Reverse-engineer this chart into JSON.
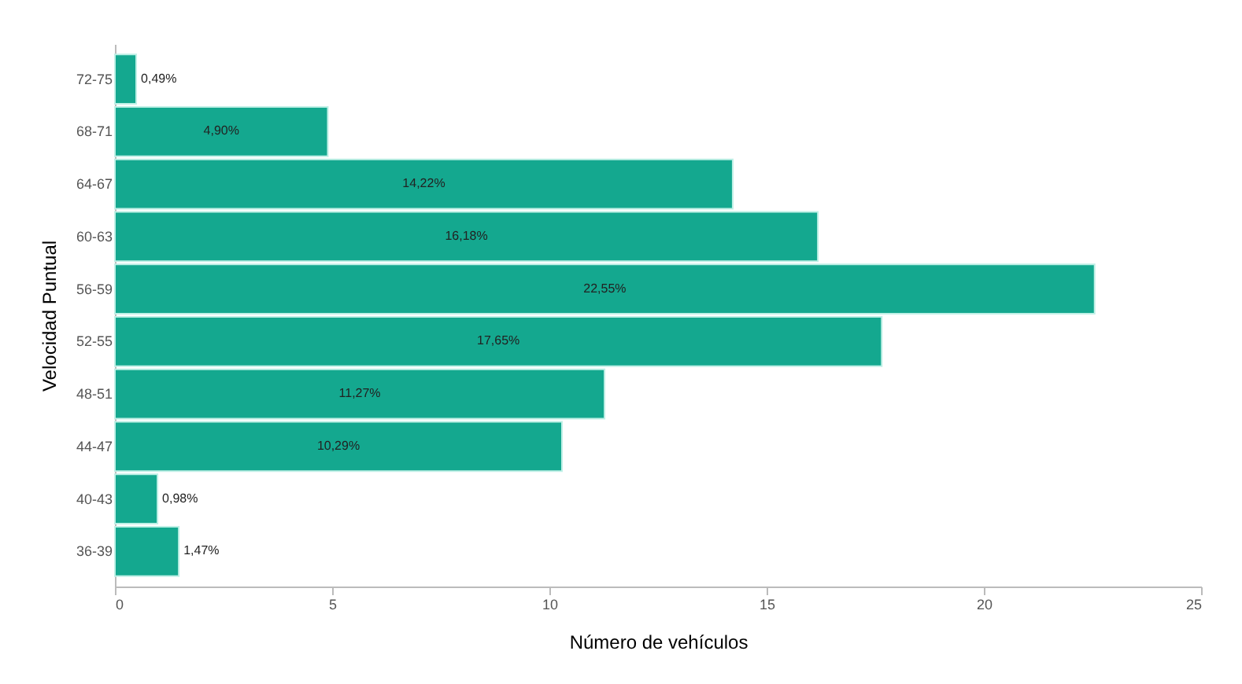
{
  "chart_data": {
    "type": "bar",
    "orientation": "horizontal",
    "xlabel": "Número de vehículos",
    "ylabel": "Velocidad Puntual",
    "categories": [
      "72-75",
      "68-71",
      "64-67",
      "60-63",
      "56-59",
      "52-55",
      "48-51",
      "44-47",
      "40-43",
      "36-39"
    ],
    "values": [
      0.49,
      4.9,
      14.22,
      16.18,
      22.55,
      17.65,
      11.27,
      10.29,
      0.98,
      1.47
    ],
    "value_labels": [
      "0,49%",
      "4,90%",
      "14,22%",
      "16,18%",
      "22,55%",
      "17,65%",
      "11,27%",
      "10,29%",
      "0,98%",
      "1,47%"
    ],
    "color": "#14a88f",
    "xlim": [
      0,
      25
    ],
    "xticks": [
      0,
      5,
      10,
      15,
      20,
      25
    ],
    "grid": false
  }
}
